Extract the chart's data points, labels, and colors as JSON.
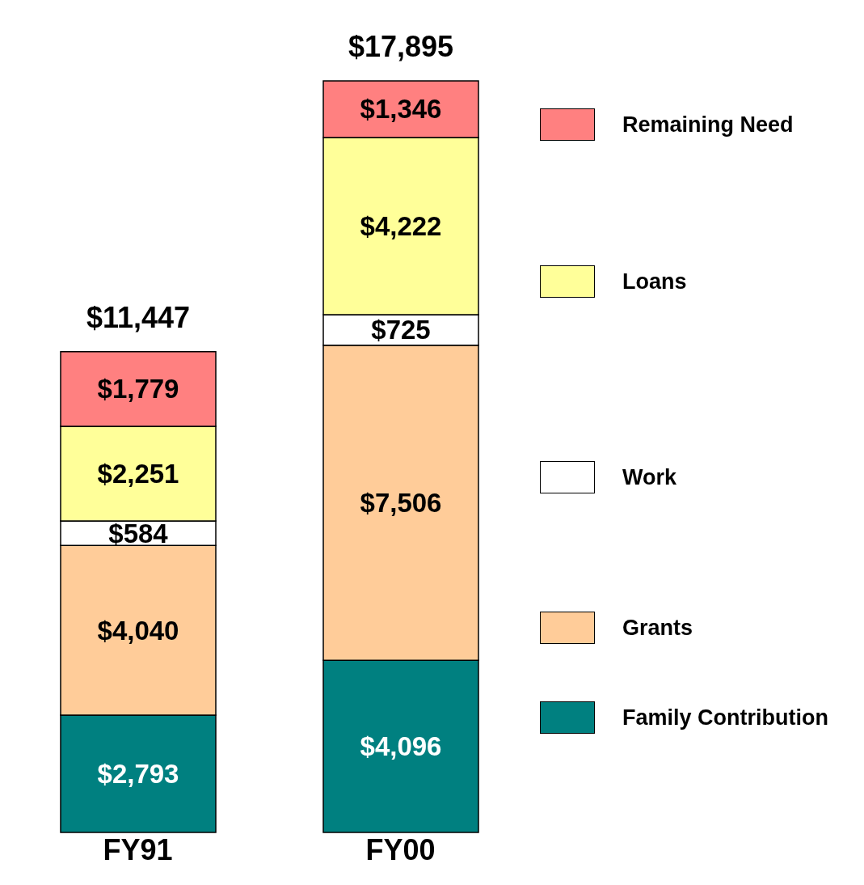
{
  "chart_data": {
    "type": "bar",
    "stacked": true,
    "categories": [
      "FY91",
      "FY00"
    ],
    "tick_labels": "x",
    "legend": "right",
    "grid": false,
    "series": [
      {
        "name": "Family Contribution",
        "color": "#008080",
        "values": [
          2793,
          4096
        ],
        "value_labels": [
          "$2,793",
          "$4,096"
        ]
      },
      {
        "name": "Grants",
        "color": "#ffcc99",
        "values": [
          4040,
          7506
        ],
        "value_labels": [
          "$4,040",
          "$7,506"
        ]
      },
      {
        "name": "Work",
        "color": "#ffffff",
        "values": [
          584,
          725
        ],
        "value_labels": [
          "$584",
          "$725"
        ]
      },
      {
        "name": "Loans",
        "color": "#ffff99",
        "values": [
          2251,
          4222
        ],
        "value_labels": [
          "$2,251",
          "$4,222"
        ]
      },
      {
        "name": "Remaining Need",
        "color": "#ff8080",
        "values": [
          1779,
          1346
        ],
        "value_labels": [
          "$1,779",
          "$1,346"
        ]
      }
    ],
    "totals": [
      "$11,447",
      "$17,895"
    ]
  }
}
